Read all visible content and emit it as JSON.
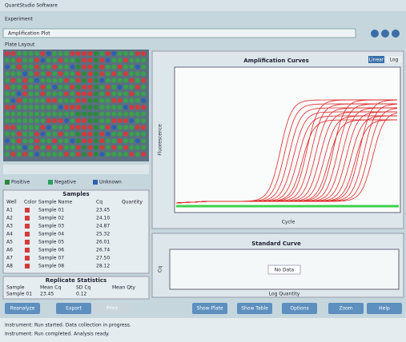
{
  "window": {
    "title": "QuantStudio Software",
    "path": "Experiment",
    "toolbar_field": "Amplification Plot"
  },
  "plate": {
    "title": "Plate Layout",
    "legend": [
      "Positive",
      "Negative",
      "Unknown"
    ]
  },
  "table": {
    "title": "Samples",
    "columns": [
      "Well",
      "Color",
      "Sample Name",
      "Cq",
      "Quantity"
    ],
    "rows": [
      [
        "A1",
        "",
        "Sample 01",
        "23.45",
        ""
      ],
      [
        "A2",
        "",
        "Sample 02",
        "24.10",
        ""
      ],
      [
        "A3",
        "",
        "Sample 03",
        "24.87",
        ""
      ],
      [
        "A4",
        "",
        "Sample 04",
        "25.32",
        ""
      ],
      [
        "A5",
        "",
        "Sample 05",
        "26.01",
        ""
      ],
      [
        "A6",
        "",
        "Sample 06",
        "26.74",
        ""
      ],
      [
        "A7",
        "",
        "Sample 07",
        "27.50",
        ""
      ],
      [
        "A8",
        "",
        "Sample 08",
        "28.12",
        ""
      ]
    ]
  },
  "stats": {
    "title": "Replicate Statistics",
    "columns": [
      "Sample",
      "Mean Cq",
      "SD Cq",
      "Mean Qty"
    ],
    "row": [
      "Sample 01",
      "23.45",
      "0.12",
      ""
    ]
  },
  "plot": {
    "title": "Amplification Curves",
    "y_label": "Fluorescence",
    "x_label": "Cycle",
    "toggles": [
      "Linear",
      "Log"
    ]
  },
  "standard": {
    "title": "Standard Curve",
    "y_label": "Cq",
    "x_label": "Log Quantity",
    "placeholder": "No Data"
  },
  "buttons": [
    "Reanalyze",
    "Export",
    "Print",
    "Show Plate",
    "Show Table",
    "Options",
    "Zoom",
    "Help"
  ],
  "log": [
    "Instrument: Run started. Data collection in progress.",
    "Instrument: Run completed. Analysis ready."
  ]
}
